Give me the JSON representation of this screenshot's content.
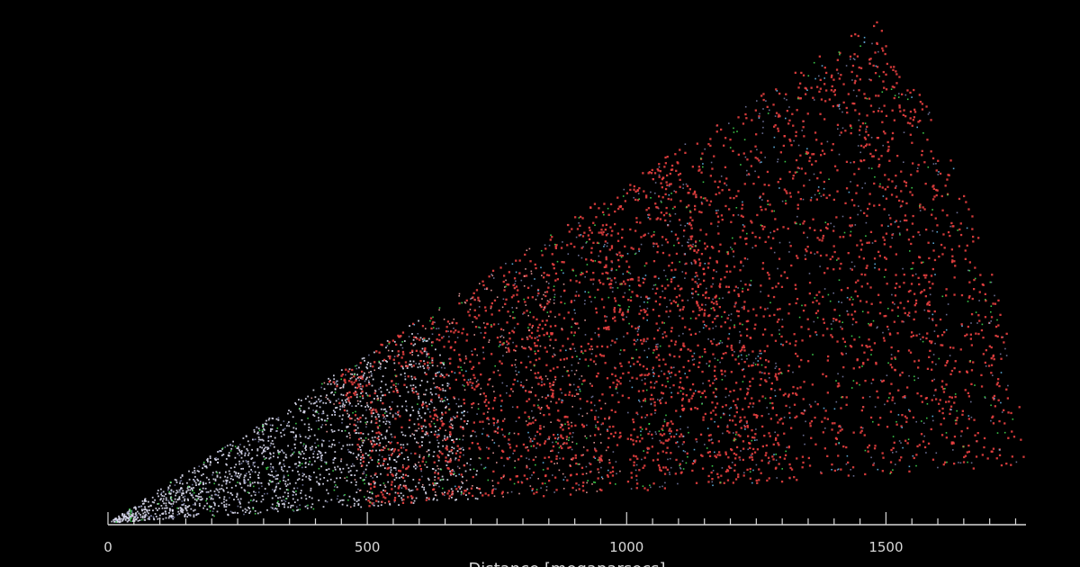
{
  "chart_data": {
    "type": "scatter",
    "title": "",
    "xlabel": "Distance [megaparsecs]",
    "ylabel": "",
    "xlim": [
      0,
      1770
    ],
    "x_ticks_major": [
      0,
      500,
      1000,
      1500
    ],
    "x_ticks_major_labels": [
      "0",
      "500",
      "1000",
      "1500"
    ],
    "x_ticks_minor_step": 50,
    "grid": false,
    "background": "#000000",
    "series": [
      {
        "color": "#dcdcf0",
        "approx_count": 2600,
        "distance_range": [
          0,
          720
        ]
      },
      {
        "color": "#8a8fbf",
        "approx_count": 900,
        "distance_range": [
          0,
          1770
        ]
      },
      {
        "color": "#e84040",
        "approx_count": 3400,
        "distance_range": [
          500,
          1770
        ]
      },
      {
        "color": "#f0a0a0",
        "approx_count": 500,
        "distance_range": [
          450,
          1000
        ]
      },
      {
        "color": "#3fd84f",
        "approx_count": 450,
        "distance_range": [
          0,
          1770
        ]
      },
      {
        "color": "#5fb6e8",
        "approx_count": 220,
        "distance_range": [
          600,
          1770
        ]
      }
    ]
  }
}
